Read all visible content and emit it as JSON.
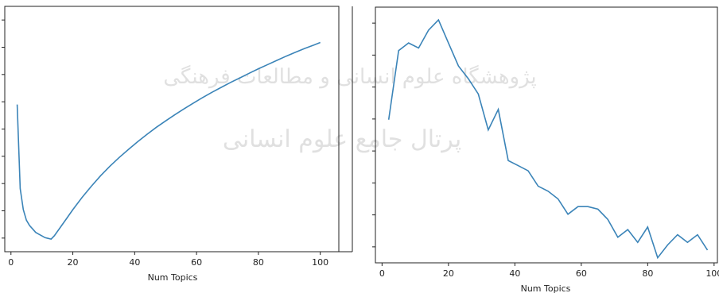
{
  "chart_data": [
    {
      "type": "line",
      "title": "",
      "xlabel": "Num Topics",
      "ylabel": "",
      "xlim": [
        -2,
        106
      ],
      "ylim": [
        0.3,
        1.0
      ],
      "xticks": [
        0,
        20,
        40,
        60,
        80,
        100
      ],
      "yticks_count": 9,
      "grid": false,
      "color": "#3b84b8",
      "series": [
        {
          "x": [
            2,
            3,
            4,
            5,
            6,
            7,
            8,
            9,
            10,
            11,
            12,
            13,
            14,
            16,
            18,
            20,
            23,
            26,
            29,
            32,
            35,
            38,
            41,
            44,
            47,
            50,
            53,
            56,
            59,
            62,
            65,
            68,
            71,
            74,
            77,
            80,
            83,
            86,
            89,
            92,
            95,
            98,
            100
          ],
          "y": [
            0.72,
            0.48,
            0.42,
            0.39,
            0.375,
            0.365,
            0.355,
            0.35,
            0.345,
            0.34,
            0.338,
            0.336,
            0.345,
            0.37,
            0.395,
            0.42,
            0.455,
            0.487,
            0.517,
            0.544,
            0.569,
            0.592,
            0.614,
            0.635,
            0.655,
            0.673,
            0.691,
            0.708,
            0.724,
            0.74,
            0.755,
            0.769,
            0.783,
            0.796,
            0.809,
            0.822,
            0.834,
            0.846,
            0.858,
            0.869,
            0.88,
            0.89,
            0.897
          ]
        }
      ]
    },
    {
      "type": "line",
      "title": "",
      "xlabel": "Num Topics",
      "ylabel": "",
      "xlim": [
        -2,
        101
      ],
      "ylim": [
        0.0,
        1.0
      ],
      "xticks": [
        0,
        20,
        40,
        60,
        80,
        100
      ],
      "yticks_count": 8,
      "grid": false,
      "color": "#3b84b8",
      "series": [
        {
          "x": [
            2,
            5,
            8,
            11,
            14,
            17,
            20,
            23,
            26,
            29,
            32,
            35,
            38,
            41,
            44,
            47,
            50,
            53,
            56,
            59,
            62,
            65,
            68,
            71,
            74,
            77,
            80,
            83,
            86,
            89,
            92,
            95,
            98
          ],
          "y": [
            0.56,
            0.83,
            0.86,
            0.84,
            0.91,
            0.95,
            0.86,
            0.77,
            0.72,
            0.66,
            0.52,
            0.6,
            0.4,
            0.38,
            0.36,
            0.3,
            0.28,
            0.25,
            0.19,
            0.22,
            0.22,
            0.21,
            0.17,
            0.1,
            0.13,
            0.08,
            0.14,
            0.02,
            0.07,
            0.11,
            0.08,
            0.11,
            0.05
          ]
        }
      ]
    }
  ],
  "watermark": {
    "line1": "پرتال جامع علوم انسانی",
    "line2": "پژوهشگاه علوم انسانی و مطالعات فرهنگی"
  }
}
